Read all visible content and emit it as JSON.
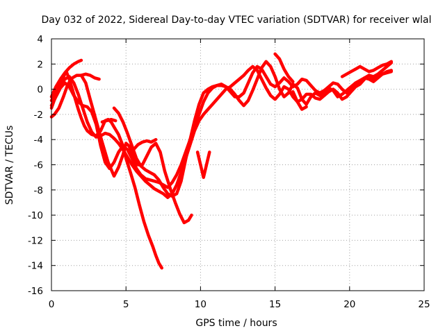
{
  "chart_data": {
    "type": "scatter",
    "title": "Day 032 of 2022, Sidereal Day-to-day VTEC variation (SDTVAR) for receiver wlal",
    "xlabel": "GPS time / hours",
    "ylabel": "SDTVAR / TECUs",
    "xlim": [
      0,
      25
    ],
    "ylim": [
      -16,
      4
    ],
    "xticks": [
      0,
      5,
      10,
      15,
      20,
      25
    ],
    "yticks": [
      4,
      2,
      0,
      -2,
      -4,
      -6,
      -8,
      -10,
      -12,
      -14,
      -16
    ],
    "grid": true,
    "marker": "+",
    "color": "#ff0000",
    "series": [
      {
        "x": [
          0.0,
          0.3,
          0.6,
          0.9,
          1.2,
          1.5,
          1.8,
          2.0
        ],
        "y": [
          -0.6,
          0.2,
          0.8,
          1.3,
          1.7,
          2.0,
          2.2,
          2.3
        ]
      },
      {
        "x": [
          0.0,
          0.3,
          0.6,
          0.9,
          1.0,
          1.2,
          1.4,
          1.6,
          1.8,
          2.0,
          2.2,
          2.4,
          2.7,
          3.0,
          3.3,
          3.6,
          3.8,
          4.0,
          4.2,
          4.5,
          4.8,
          5.0,
          5.3,
          5.6,
          5.9,
          6.2,
          6.5,
          6.8,
          7.0,
          7.2,
          7.4
        ],
        "y": [
          -1.5,
          -0.5,
          0.5,
          1.2,
          1.4,
          0.8,
          0.0,
          -0.8,
          -1.6,
          -2.3,
          -2.9,
          -3.3,
          -3.6,
          -3.7,
          -3.3,
          -2.5,
          -2.4,
          -2.6,
          -3.0,
          -3.6,
          -4.5,
          -5.5,
          -6.6,
          -7.8,
          -9.2,
          -10.5,
          -11.6,
          -12.5,
          -13.2,
          -13.8,
          -14.2
        ]
      },
      {
        "x": [
          0.0,
          0.2,
          0.5,
          0.8,
          1.1,
          1.4,
          1.7,
          2.0,
          2.3,
          2.6,
          3.0,
          3.4,
          3.8,
          4.2,
          4.5,
          4.8,
          5.0,
          5.2,
          5.5,
          5.8,
          6.1,
          6.4,
          6.7,
          7.0,
          7.3,
          7.6,
          8.0,
          8.3,
          8.6,
          8.9,
          9.2,
          9.4
        ],
        "y": [
          -2.2,
          -2.0,
          -1.5,
          -0.6,
          0.4,
          0.9,
          1.1,
          1.1,
          0.5,
          -0.8,
          -2.5,
          -4.2,
          -5.8,
          -6.9,
          -6.2,
          -5.2,
          -4.3,
          -4.5,
          -5.3,
          -6.0,
          -6.0,
          -5.3,
          -4.6,
          -4.3,
          -5.0,
          -6.5,
          -8.0,
          -9.0,
          -9.9,
          -10.6,
          -10.4,
          -10.0
        ]
      },
      {
        "x": [
          2.0,
          2.3,
          2.6,
          2.9,
          3.2
        ],
        "y": [
          1.1,
          1.2,
          1.1,
          0.9,
          0.8
        ]
      },
      {
        "x": [
          0.0,
          0.3,
          0.6,
          0.9,
          1.2,
          1.5,
          1.8,
          2.1,
          2.4,
          2.7,
          3.0,
          3.3,
          3.6,
          3.9,
          4.2,
          4.5,
          4.8,
          5.1,
          5.4,
          5.7,
          6.0,
          6.3,
          6.6,
          6.9,
          7.2,
          7.5,
          7.8,
          8.1,
          8.4,
          8.7,
          9.0,
          9.3,
          9.6,
          9.9,
          10.2,
          10.5,
          10.8,
          11.1,
          11.4,
          11.7,
          12.0,
          12.3,
          12.6,
          12.9,
          13.2,
          13.5,
          13.8,
          14.1,
          14.4,
          14.7,
          15.0,
          15.3,
          15.6,
          15.9,
          16.2,
          16.5,
          16.8,
          17.1,
          17.4,
          17.7,
          18.0,
          18.3,
          18.6,
          18.9,
          19.2,
          19.5,
          19.8,
          20.1,
          20.4,
          20.7,
          21.0,
          21.3,
          21.6,
          21.9,
          22.2,
          22.5,
          22.8
        ],
        "y": [
          -1.3,
          -0.6,
          0.1,
          0.5,
          0.2,
          -0.5,
          -1.0,
          -1.3,
          -1.4,
          -1.8,
          -2.8,
          -4.5,
          -5.8,
          -6.3,
          -5.8,
          -5.0,
          -4.5,
          -4.8,
          -5.5,
          -6.3,
          -6.8,
          -7.1,
          -7.2,
          -7.3,
          -7.4,
          -7.6,
          -7.8,
          -7.4,
          -6.8,
          -6.0,
          -5.0,
          -4.0,
          -3.0,
          -2.0,
          -1.0,
          -0.3,
          0.1,
          0.3,
          0.4,
          0.2,
          -0.2,
          -0.6,
          -0.6,
          -0.3,
          0.5,
          1.3,
          1.8,
          1.6,
          1.0,
          0.4,
          0.2,
          0.5,
          0.9,
          0.6,
          0.2,
          0.4,
          0.8,
          0.7,
          0.3,
          -0.1,
          -0.3,
          -0.1,
          0.2,
          0.5,
          0.4,
          0.0,
          -0.3,
          -0.1,
          0.3,
          0.6,
          0.9,
          0.8,
          0.6,
          0.9,
          1.2,
          1.3,
          1.4
        ]
      },
      {
        "x": [
          0.0,
          0.3,
          0.6,
          0.9,
          1.2,
          1.5,
          1.8,
          2.1,
          2.4,
          2.7,
          3.0,
          3.3,
          3.6,
          3.9,
          4.2,
          4.5,
          4.8,
          5.1,
          5.4,
          5.7,
          6.0,
          6.3,
          6.6,
          6.9,
          7.2,
          7.5,
          7.8,
          8.1,
          8.4,
          8.7,
          9.0,
          9.3,
          9.6,
          9.9,
          10.2,
          10.5,
          10.8,
          11.1,
          11.4,
          11.7,
          12.0,
          12.3,
          12.6,
          12.9,
          13.2,
          13.5,
          13.8,
          14.1,
          14.4,
          14.7,
          15.0,
          15.3,
          15.6,
          15.9,
          16.2,
          16.5,
          16.8,
          17.1,
          17.4,
          17.7,
          18.0,
          18.3,
          18.6,
          18.9,
          19.2,
          19.5,
          19.8,
          20.1,
          20.4,
          20.7,
          21.0,
          21.3,
          21.6,
          21.9,
          22.2,
          22.5,
          22.8
        ],
        "y": [
          -0.9,
          -0.3,
          0.3,
          0.8,
          1.0,
          0.5,
          -0.4,
          -1.5,
          -2.6,
          -3.4,
          -3.8,
          -3.7,
          -3.5,
          -3.6,
          -3.9,
          -4.3,
          -4.8,
          -5.4,
          -6.0,
          -6.5,
          -6.9,
          -7.3,
          -7.6,
          -7.9,
          -8.1,
          -8.3,
          -8.6,
          -8.3,
          -7.6,
          -6.6,
          -5.5,
          -4.4,
          -3.3,
          -2.5,
          -2.0,
          -1.6,
          -1.2,
          -0.8,
          -0.4,
          0.0,
          0.2,
          0.5,
          0.8,
          1.1,
          1.5,
          1.8,
          1.5,
          0.8,
          0.1,
          -0.5,
          -0.8,
          -0.4,
          0.2,
          0.0,
          -0.6,
          -1.0,
          -0.8,
          -0.4,
          -0.4,
          -0.7,
          -0.8,
          -0.5,
          -0.2,
          0.0,
          -0.3,
          -0.8,
          -0.6,
          -0.2,
          0.2,
          0.4,
          0.8,
          1.1,
          1.0,
          1.2,
          1.5,
          1.8,
          2.1
        ]
      },
      {
        "x": [
          4.2,
          4.5,
          4.8,
          5.1,
          5.4,
          5.7,
          6.0,
          6.3,
          6.6,
          6.9,
          7.2,
          7.5,
          7.8,
          8.1,
          8.4,
          8.7,
          9.0,
          9.3,
          9.6,
          9.9,
          10.2,
          10.5,
          10.8,
          11.1,
          11.4,
          11.7,
          12.0,
          12.3,
          12.6,
          12.9,
          13.2,
          13.5,
          13.8,
          14.1,
          14.4,
          14.7,
          15.0,
          15.3,
          15.6,
          15.9,
          16.2,
          16.5,
          16.8,
          17.1,
          17.4,
          17.7,
          18.0,
          18.3,
          18.6,
          18.9,
          19.2,
          19.5,
          19.8,
          20.1,
          20.4,
          20.7,
          21.0,
          21.3,
          21.6,
          21.9,
          22.2,
          22.5,
          22.8
        ],
        "y": [
          -1.5,
          -1.9,
          -2.6,
          -3.5,
          -4.5,
          -5.5,
          -6.1,
          -6.4,
          -6.6,
          -6.8,
          -7.2,
          -7.8,
          -8.3,
          -8.5,
          -8.3,
          -7.3,
          -5.6,
          -4.0,
          -2.5,
          -1.2,
          -0.3,
          0.0,
          0.2,
          0.3,
          0.3,
          0.2,
          0.0,
          -0.4,
          -0.9,
          -1.3,
          -0.9,
          -0.1,
          0.8,
          1.7,
          2.2,
          1.8,
          1.0,
          0.0,
          -0.6,
          -0.3,
          0.4,
          0.1,
          -0.8,
          -1.2,
          -0.6,
          -0.3,
          -0.5,
          -0.2,
          0.1,
          -0.1,
          -0.6,
          -0.4,
          -0.1,
          0.2,
          0.5,
          0.7,
          0.9,
          1.1,
          0.8,
          1.0,
          1.2,
          1.4,
          1.5
        ]
      },
      {
        "x": [
          3.4,
          3.7,
          4.0,
          4.3
        ],
        "y": [
          -2.6,
          -2.5,
          -2.4,
          -2.5
        ]
      },
      {
        "x": [
          5.5,
          5.8,
          6.1,
          6.4,
          6.7,
          7.0
        ],
        "y": [
          -4.8,
          -4.4,
          -4.2,
          -4.1,
          -4.2,
          -4.0
        ]
      },
      {
        "x": [
          9.8,
          10.0,
          10.2,
          10.4,
          10.6
        ],
        "y": [
          -5.0,
          -6.0,
          -7.0,
          -6.0,
          -5.0
        ]
      },
      {
        "x": [
          15.0,
          15.3,
          15.6,
          15.9,
          16.2
        ],
        "y": [
          2.8,
          2.4,
          1.6,
          1.0,
          0.6
        ]
      },
      {
        "x": [
          16.2,
          16.5,
          16.8,
          17.1
        ],
        "y": [
          -0.2,
          -1.0,
          -1.6,
          -1.4
        ]
      },
      {
        "x": [
          19.5,
          19.8,
          20.1,
          20.4,
          20.7,
          21.0,
          21.3,
          21.6,
          21.9,
          22.2,
          22.5,
          22.8
        ],
        "y": [
          1.0,
          1.2,
          1.4,
          1.6,
          1.8,
          1.6,
          1.4,
          1.5,
          1.7,
          1.9,
          2.0,
          2.2
        ]
      }
    ]
  }
}
